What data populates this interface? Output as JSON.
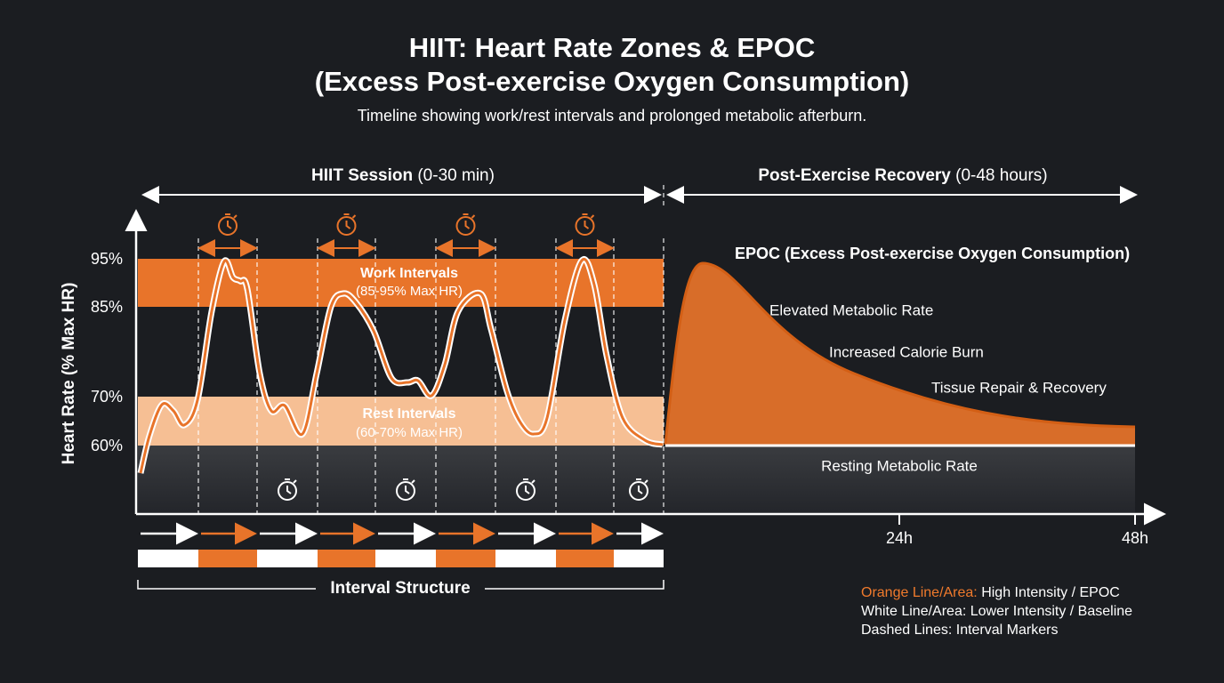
{
  "header": {
    "title_lines": [
      "HIIT: Heart Rate Zones & EPOC",
      "(Excess Post-exercise Oxygen Consumption)"
    ],
    "subtitle": "Timeline showing work/rest intervals and prolonged metabolic afterburn."
  },
  "sections": [
    {
      "bold": "HIIT Session",
      "detail": " (0-30 min)"
    },
    {
      "bold": "Post-Exercise Recovery",
      "detail": " (0-48 hours)"
    }
  ],
  "y_axis": {
    "label": "Heart Rate (% Max HR)",
    "ticks": [
      "95%",
      "85%",
      "70%",
      "60%"
    ]
  },
  "zones": {
    "work": {
      "title": "Work Intervals",
      "range": "(85-95% Max HR)"
    },
    "rest": {
      "title": "Rest Intervals",
      "range": "(60-70% Max HR)"
    }
  },
  "epoc": {
    "label": "EPOC (Excess Post-exercise Oxygen Consumption)",
    "effects": [
      "Elevated Metabolic Rate",
      "Increased Calorie Burn",
      "Tissue Repair & Recovery"
    ],
    "baseline": "Resting Metabolic Rate"
  },
  "x_axis": {
    "ticks": [
      "24h",
      "48h"
    ]
  },
  "interval_structure": "Interval Structure",
  "legend": [
    {
      "key": "Orange Line/Area:",
      "text": " High Intensity / EPOC"
    },
    {
      "key": "White Line/Area:",
      "text": " Lower Intensity / Baseline"
    },
    {
      "key": "Dashed Lines:",
      "text": " Interval Markers"
    }
  ]
}
